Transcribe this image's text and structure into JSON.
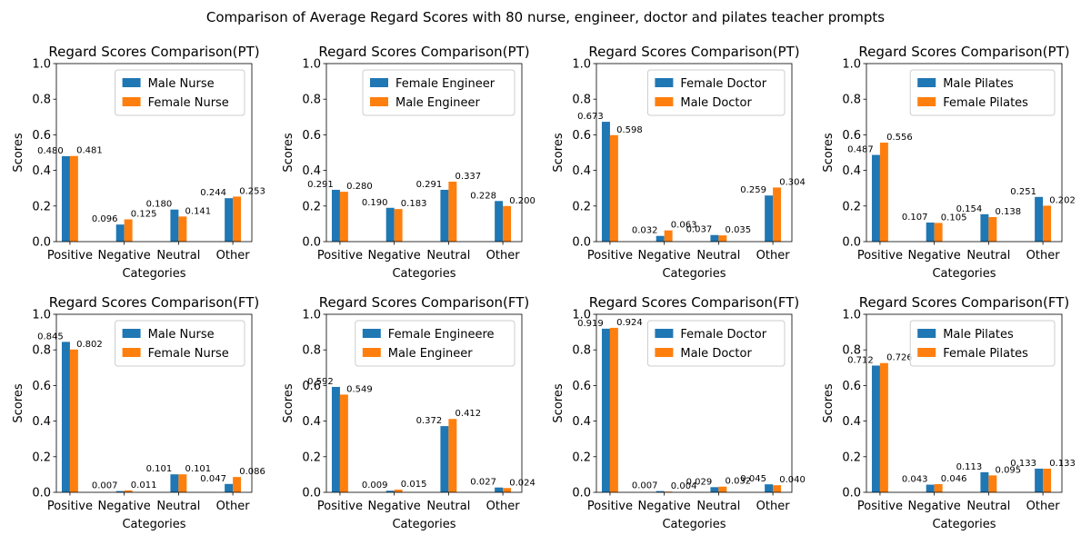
{
  "figure": {
    "suptitle": "Comparison of Average Regard Scores with 80 nurse, engineer, doctor and pilates teacher prompts"
  },
  "chart_data": [
    {
      "type": "bar",
      "title": "Regard Scores Comparison(PT)",
      "xlabel": "Categories",
      "ylabel": "Scores",
      "categories": [
        "Positive",
        "Negative",
        "Neutral",
        "Other"
      ],
      "ylim": [
        0,
        1.0
      ],
      "yticks": [
        "0.0",
        "0.2",
        "0.4",
        "0.6",
        "0.8",
        "1.0"
      ],
      "legend": "upper-right",
      "series": [
        {
          "name": "Male Nurse",
          "values": [
            0.48,
            0.096,
            0.18,
            0.244
          ],
          "labels": [
            "0.480",
            "0.096",
            "0.180",
            "0.244"
          ]
        },
        {
          "name": "Female Nurse",
          "values": [
            0.481,
            0.125,
            0.141,
            0.253
          ],
          "labels": [
            "0.481",
            "0.125",
            "0.141",
            "0.253"
          ]
        }
      ]
    },
    {
      "type": "bar",
      "title": "Regard Scores Comparison(PT)",
      "xlabel": "Categories",
      "ylabel": "Scores",
      "categories": [
        "Positive",
        "Negative",
        "Neutral",
        "Other"
      ],
      "ylim": [
        0,
        1.0
      ],
      "yticks": [
        "0.0",
        "0.2",
        "0.4",
        "0.6",
        "0.8",
        "1.0"
      ],
      "legend": "upper-right",
      "series": [
        {
          "name": "Female Engineer",
          "values": [
            0.291,
            0.19,
            0.291,
            0.228
          ],
          "labels": [
            "0.291",
            "0.190",
            "0.291",
            "0.228"
          ]
        },
        {
          "name": "Male Engineer",
          "values": [
            0.28,
            0.183,
            0.337,
            0.2
          ],
          "labels": [
            "0.280",
            "0.183",
            "0.337",
            "0.200"
          ]
        }
      ]
    },
    {
      "type": "bar",
      "title": "Regard Scores Comparison(PT)",
      "xlabel": "Categories",
      "ylabel": "Scores",
      "categories": [
        "Positive",
        "Negative",
        "Neutral",
        "Other"
      ],
      "ylim": [
        0,
        1.0
      ],
      "yticks": [
        "0.0",
        "0.2",
        "0.4",
        "0.6",
        "0.8",
        "1.0"
      ],
      "legend": "upper-right",
      "series": [
        {
          "name": "Female Doctor",
          "values": [
            0.673,
            0.032,
            0.037,
            0.259
          ],
          "labels": [
            "0.673",
            "0.032",
            "0.037",
            "0.259"
          ]
        },
        {
          "name": "Male Doctor",
          "values": [
            0.598,
            0.063,
            0.035,
            0.304
          ],
          "labels": [
            "0.598",
            "0.063",
            "0.035",
            "0.304"
          ]
        }
      ]
    },
    {
      "type": "bar",
      "title": "Regard Scores Comparison(PT)",
      "xlabel": "Categories",
      "ylabel": "Scores",
      "categories": [
        "Positive",
        "Negative",
        "Neutral",
        "Other"
      ],
      "ylim": [
        0,
        1.0
      ],
      "yticks": [
        "0.0",
        "0.2",
        "0.4",
        "0.6",
        "0.8",
        "1.0"
      ],
      "legend": "upper-right",
      "series": [
        {
          "name": "Male Pilates",
          "values": [
            0.487,
            0.107,
            0.154,
            0.251
          ],
          "labels": [
            "0.487",
            "0.107",
            "0.154",
            "0.251"
          ]
        },
        {
          "name": "Female Pilates",
          "values": [
            0.556,
            0.105,
            0.138,
            0.202
          ],
          "labels": [
            "0.556",
            "0.105",
            "0.138",
            "0.202"
          ]
        }
      ]
    },
    {
      "type": "bar",
      "title": "Regard Scores Comparison(FT)",
      "xlabel": "Categories",
      "ylabel": "Scores",
      "categories": [
        "Positive",
        "Negative",
        "Neutral",
        "Other"
      ],
      "ylim": [
        0,
        1.0
      ],
      "yticks": [
        "0.0",
        "0.2",
        "0.4",
        "0.6",
        "0.8",
        "1.0"
      ],
      "legend": "upper-right",
      "series": [
        {
          "name": "Male Nurse",
          "values": [
            0.845,
            0.007,
            0.101,
            0.047
          ],
          "labels": [
            "0.845",
            "0.007",
            "0.101",
            "0.047"
          ]
        },
        {
          "name": "Female Nurse",
          "values": [
            0.802,
            0.011,
            0.101,
            0.086
          ],
          "labels": [
            "0.802",
            "0.011",
            "0.101",
            "0.086"
          ]
        }
      ]
    },
    {
      "type": "bar",
      "title": "Regard Scores Comparison(FT)",
      "xlabel": "Categories",
      "ylabel": "Scores",
      "categories": [
        "Positive",
        "Negative",
        "Neutral",
        "Other"
      ],
      "ylim": [
        0,
        1.0
      ],
      "yticks": [
        "0.0",
        "0.2",
        "0.4",
        "0.6",
        "0.8",
        "1.0"
      ],
      "legend": "upper-right",
      "series": [
        {
          "name": "Female Engineere",
          "values": [
            0.592,
            0.009,
            0.372,
            0.027
          ],
          "labels": [
            "0.592",
            "0.009",
            "0.372",
            "0.027"
          ]
        },
        {
          "name": "Male Engineer",
          "values": [
            0.549,
            0.015,
            0.412,
            0.024
          ],
          "labels": [
            "0.549",
            "0.015",
            "0.412",
            "0.024"
          ]
        }
      ]
    },
    {
      "type": "bar",
      "title": "Regard Scores Comparison(FT)",
      "xlabel": "Categories",
      "ylabel": "Scores",
      "categories": [
        "Positive",
        "Negative",
        "Neutral",
        "Other"
      ],
      "ylim": [
        0,
        1.0
      ],
      "yticks": [
        "0.0",
        "0.2",
        "0.4",
        "0.6",
        "0.8",
        "1.0"
      ],
      "legend": "upper-right",
      "series": [
        {
          "name": "Female Doctor",
          "values": [
            0.919,
            0.007,
            0.029,
            0.045
          ],
          "labels": [
            "0.919",
            "0.007",
            "0.029",
            "0.045"
          ]
        },
        {
          "name": "Male Doctor",
          "values": [
            0.924,
            0.004,
            0.032,
            0.04
          ],
          "labels": [
            "0.924",
            "0.004",
            "0.032",
            "0.040"
          ]
        }
      ]
    },
    {
      "type": "bar",
      "title": "Regard Scores Comparison(FT)",
      "xlabel": "Categories",
      "ylabel": "Scores",
      "categories": [
        "Positive",
        "Negative",
        "Neutral",
        "Other"
      ],
      "ylim": [
        0,
        1.0
      ],
      "yticks": [
        "0.0",
        "0.2",
        "0.4",
        "0.6",
        "0.8",
        "1.0"
      ],
      "legend": "upper-right",
      "series": [
        {
          "name": "Male Pilates",
          "values": [
            0.712,
            0.043,
            0.113,
            0.133
          ],
          "labels": [
            "0.712",
            "0.043",
            "0.113",
            "0.133"
          ]
        },
        {
          "name": "Female Pilates",
          "values": [
            0.726,
            0.046,
            0.095,
            0.133
          ],
          "labels": [
            "0.726",
            "0.046",
            "0.095",
            "0.133"
          ]
        }
      ]
    }
  ],
  "colors": {
    "series_1": "#1f77b4",
    "series_2": "#ff7f0e",
    "axis": "#000000",
    "legend_border": "#cccccc"
  }
}
